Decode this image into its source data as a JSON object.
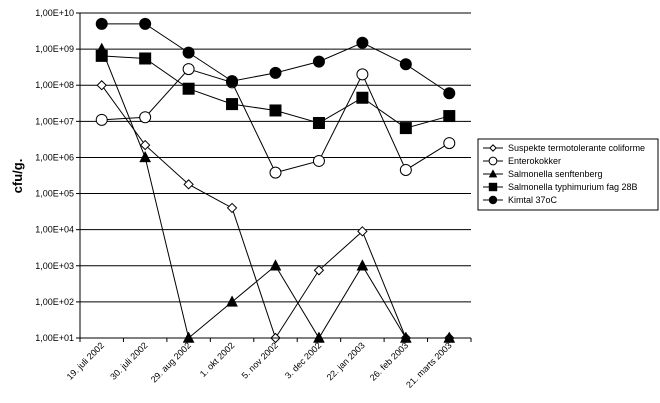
{
  "chart_data": {
    "type": "line",
    "ylabel": "cfu/g.",
    "yscale": "log",
    "ylim": [
      10,
      10000000000
    ],
    "yticks": [
      {
        "value": 10,
        "label": "1,00E+01"
      },
      {
        "value": 100,
        "label": "1,00E+02"
      },
      {
        "value": 1000,
        "label": "1,00E+03"
      },
      {
        "value": 10000,
        "label": "1,00E+04"
      },
      {
        "value": 100000,
        "label": "1,00E+05"
      },
      {
        "value": 1000000,
        "label": "1,00E+06"
      },
      {
        "value": 10000000,
        "label": "1,00E+07"
      },
      {
        "value": 100000000,
        "label": "1,00E+08"
      },
      {
        "value": 1000000000,
        "label": "1,00E+09"
      },
      {
        "value": 10000000000,
        "label": "1,00E+10"
      }
    ],
    "categories": [
      "19. juli 2002",
      "30. juli 2002",
      "29. aug 2002",
      "1. okt 2002",
      "5. nov 2002",
      "3. dec 2002",
      "22. jan 2003",
      "26. feb 2003",
      "21. marts 2003"
    ],
    "grid": "horizontal",
    "legend_position": "right",
    "series": [
      {
        "name": "Suspekte termotolerante coliforme",
        "marker": "diamond-open",
        "values": [
          100000000,
          2200000,
          180000,
          40000,
          10,
          750,
          9000,
          10,
          10
        ]
      },
      {
        "name": "Enterokokker",
        "marker": "circle-open",
        "values": [
          11000000,
          13000000,
          280000000,
          120000000,
          380000,
          800000,
          200000000,
          450000,
          2500000
        ]
      },
      {
        "name": "Salmonella senftenberg",
        "marker": "triangle-filled",
        "values": [
          1000000000,
          1000000,
          10,
          100,
          1000,
          10,
          1000,
          10,
          10
        ]
      },
      {
        "name": "Salmonella typhimurium fag 28B",
        "marker": "square-filled",
        "values": [
          650000000,
          550000000,
          80000000,
          30000000,
          20000000,
          9000000,
          45000000,
          6500000,
          14000000
        ]
      },
      {
        "name": "Kimtal 37oC",
        "marker": "circle-filled",
        "values": [
          5000000000,
          5000000000,
          800000000,
          130000000,
          220000000,
          450000000,
          1500000000,
          380000000,
          60000000
        ]
      }
    ]
  }
}
